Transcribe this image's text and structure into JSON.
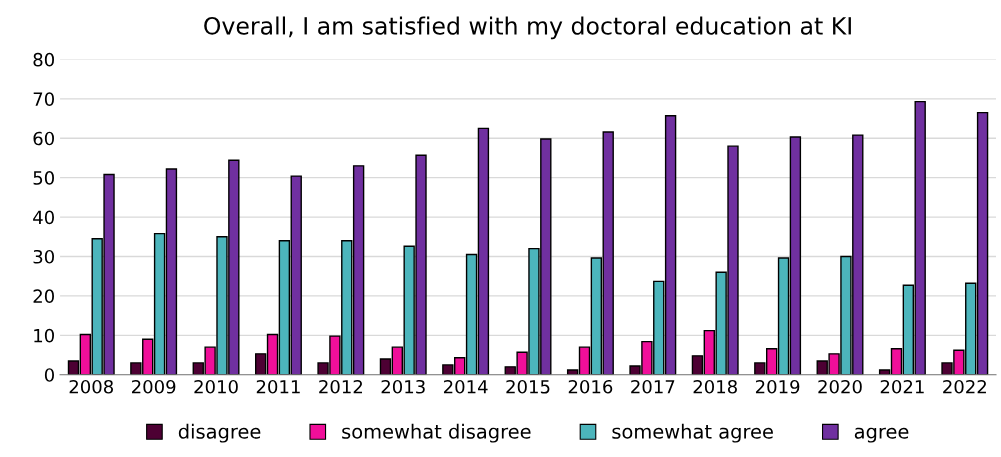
{
  "chart_data": {
    "type": "bar",
    "title": "Overall, I am satisfied with my doctoral education at KI",
    "categories": [
      "2008",
      "2009",
      "2010",
      "2011",
      "2012",
      "2013",
      "2014",
      "2015",
      "2016",
      "2017",
      "2018",
      "2019",
      "2020",
      "2021",
      "2022"
    ],
    "series": [
      {
        "name": "disagree",
        "color": "#4d0033",
        "values": [
          3.5,
          3,
          3,
          5.3,
          3,
          4,
          2.5,
          2,
          1.2,
          2.2,
          4.8,
          3,
          3.5,
          1.2,
          3
        ]
      },
      {
        "name": "somewhat disagree",
        "color": "#f00f9a",
        "values": [
          10.2,
          9,
          7,
          10.2,
          9.8,
          7,
          4.3,
          5.7,
          7,
          8.4,
          11.2,
          6.6,
          5.3,
          6.6,
          6.2
        ]
      },
      {
        "name": "somewhat agree",
        "color": "#4cb5bc",
        "values": [
          34.5,
          35.8,
          35,
          34,
          34,
          32.6,
          30.5,
          32,
          29.6,
          23.7,
          26,
          29.6,
          30,
          22.7,
          23.2
        ]
      },
      {
        "name": "agree",
        "color": "#7030a0",
        "values": [
          50.8,
          52.2,
          54.4,
          50.4,
          53,
          55.7,
          62.5,
          59.8,
          61.6,
          65.7,
          58,
          60.3,
          60.8,
          69.3,
          66.5
        ]
      }
    ],
    "ylim": [
      0,
      80
    ],
    "yticks": [
      0,
      10,
      20,
      30,
      40,
      50,
      60,
      70,
      80
    ],
    "grid": "y",
    "legend": "bottom"
  }
}
